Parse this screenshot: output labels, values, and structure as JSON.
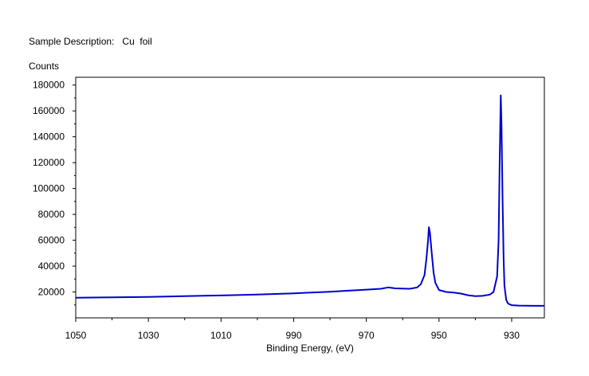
{
  "header": {
    "sample_label": "Sample Description:",
    "sample_value": "Cu  foil"
  },
  "chart_data": {
    "type": "line",
    "title": "",
    "xlabel": "Binding Energy, (eV)",
    "ylabel": "Counts",
    "xlim": [
      1050,
      921
    ],
    "x_reversed": true,
    "ylim": [
      0,
      186000
    ],
    "xticks": [
      1050,
      1030,
      1010,
      990,
      970,
      950,
      930
    ],
    "yticks": [
      20000,
      40000,
      60000,
      80000,
      100000,
      120000,
      140000,
      160000,
      180000
    ],
    "line_color": "#0000d0",
    "grid": false,
    "series": [
      {
        "x": [
          1050,
          1040,
          1030,
          1020,
          1010,
          1000,
          990,
          980,
          975,
          970,
          966,
          964,
          962,
          958,
          956,
          955,
          954,
          953.5,
          953,
          952.8,
          952.5,
          952,
          951.5,
          951,
          950,
          948,
          946,
          944,
          942,
          940,
          938,
          936,
          935,
          934,
          933.6,
          933.3,
          933.0,
          932.8,
          932.5,
          932.2,
          932,
          931.5,
          931,
          930,
          928,
          926,
          924,
          921
        ],
        "y": [
          15500,
          15900,
          16200,
          16800,
          17300,
          18000,
          19000,
          20200,
          21000,
          21800,
          22500,
          23500,
          22800,
          22500,
          23500,
          26000,
          33000,
          45000,
          60000,
          70000,
          66000,
          50000,
          35000,
          27000,
          21500,
          20000,
          19500,
          18800,
          17500,
          16800,
          17000,
          18000,
          20000,
          32000,
          60000,
          120000,
          172000,
          150000,
          90000,
          45000,
          25000,
          14000,
          11000,
          9800,
          9500,
          9400,
          9300,
          9300
        ]
      }
    ]
  }
}
